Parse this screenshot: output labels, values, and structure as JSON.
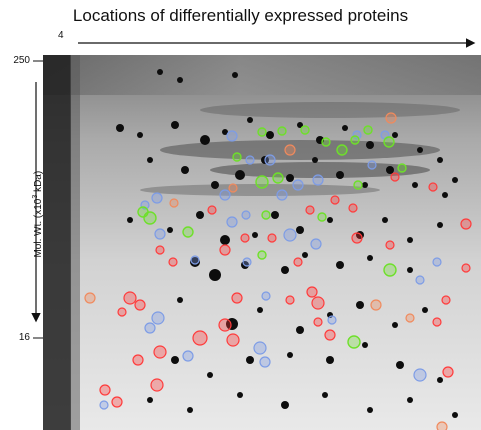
{
  "figure": {
    "title": "Locations of differentially expressed proteins",
    "pi_start_label": "4",
    "y_axis": {
      "label_prefix": "Mol. Wt. (x10",
      "label_superscript": "3",
      "label_suffix": " kDa)",
      "ticks": [
        "250",
        "16"
      ]
    }
  },
  "legend_colors": {
    "red": "#ff3b3b",
    "blue": "#7d9ce6",
    "green": "#6ee02a",
    "orange": "#f08a5d"
  }
}
